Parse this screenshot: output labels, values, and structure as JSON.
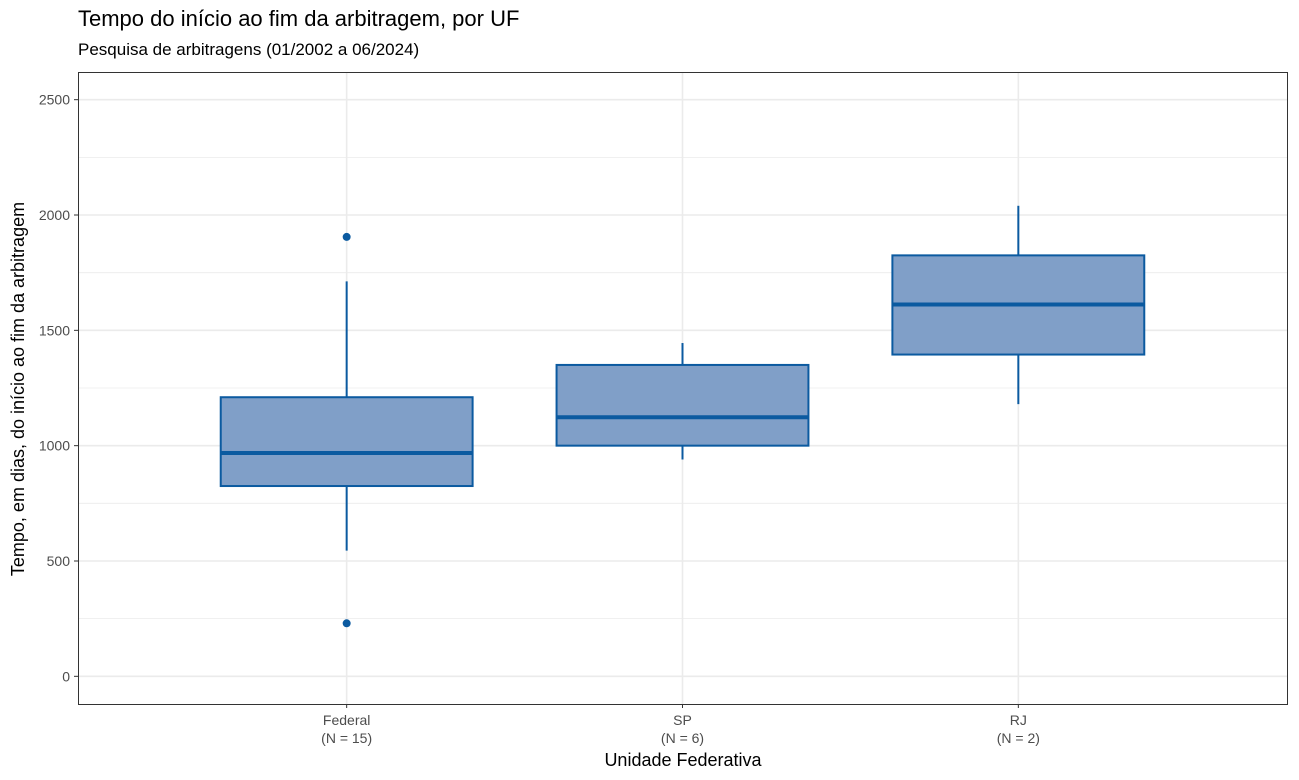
{
  "chart_data": {
    "type": "box",
    "title": "Tempo do início ao fim da arbitragem, por UF",
    "subtitle": "Pesquisa de arbitragens (01/2002 a 06/2024)",
    "xlabel": "Unidade Federativa",
    "ylabel": "Tempo, em dias, do início ao fim da arbitragem",
    "ylim": [
      -120,
      2620
    ],
    "yticks": [
      0,
      500,
      1000,
      1500,
      2000,
      2500
    ],
    "ytick_labels": [
      "0",
      "500",
      "1000",
      "1500",
      "2000",
      "2500"
    ],
    "grid": true,
    "colors": {
      "box_fill": "#809FC8",
      "box_line": "#0B5AA0",
      "grid": "#EBEBEB",
      "panel_border": "#333333"
    },
    "categories": [
      {
        "name": "Federal",
        "n_label": "(N = 15)",
        "min": 545,
        "q1": 825,
        "median": 968,
        "q3": 1210,
        "max": 1712,
        "outliers": [
          1905,
          230
        ]
      },
      {
        "name": "SP",
        "n_label": "(N = 6)",
        "min": 940,
        "q1": 1000,
        "median": 1123,
        "q3": 1350,
        "max": 1445,
        "outliers": []
      },
      {
        "name": "RJ",
        "n_label": "(N = 2)",
        "min": 1180,
        "q1": 1395,
        "median": 1612,
        "q3": 1825,
        "max": 2040,
        "outliers": []
      }
    ]
  }
}
